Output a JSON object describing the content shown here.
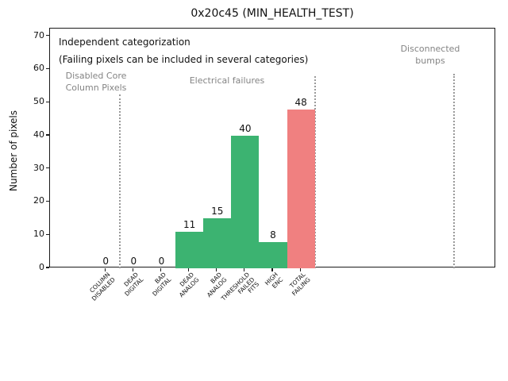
{
  "chart_data": {
    "type": "bar",
    "title": "0x20c45 (MIN_HEALTH_TEST)",
    "ylabel": "Number of pixels",
    "xlabel": "",
    "ylim": [
      0,
      72.3
    ],
    "yticks": [
      0,
      10,
      20,
      30,
      40,
      50,
      60,
      70
    ],
    "grid": false,
    "legend": null,
    "categories": [
      "COLUMN\nDISABLED",
      "DEAD\nDIGITAL",
      "BAD\nDIGITAL",
      "DEAD\nANALOG",
      "BAD\nANALOG",
      "THRESHOLD\nFAILED\nFITS",
      "HIGH\nENC",
      "TOTAL\nFAILING"
    ],
    "values": [
      0,
      0,
      0,
      11,
      15,
      40,
      8,
      48
    ],
    "bar_colors": [
      "#3cb371",
      "#3cb371",
      "#3cb371",
      "#3cb371",
      "#3cb371",
      "#3cb371",
      "#3cb371",
      "#f08080"
    ],
    "separators_x": [
      0.5,
      7.5,
      12.5
    ],
    "annotations": {
      "note_line1": "Independent categorization",
      "note_line2": "(Failing pixels can be included in several categories)",
      "zones": [
        {
          "label": "Disabled Core\nColumn Pixels"
        },
        {
          "label": "Electrical failures"
        },
        {
          "label": "Disconnected\nbumps"
        }
      ]
    },
    "colors": {
      "bar_green": "#3cb371",
      "bar_red": "#f08080",
      "annotation_gray": "#848484",
      "separator_gray": "#9a9a9a",
      "axis": "#1a1a1a"
    }
  }
}
